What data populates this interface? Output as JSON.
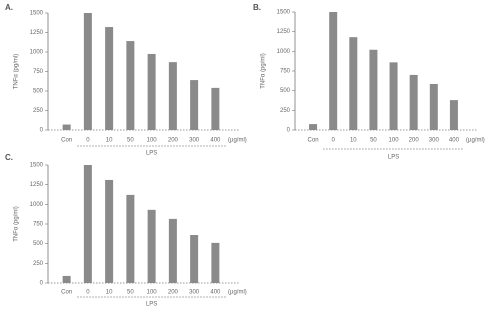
{
  "chart_data": [
    {
      "type": "bar",
      "title": "A.",
      "y_label": "TNFα (pg/ml)",
      "x_label": "LPS",
      "unit_label": "(µg/ml)",
      "categories": [
        "Con",
        "0",
        "10",
        "50",
        "100",
        "200",
        "300",
        "400"
      ],
      "values": [
        70,
        1500,
        1320,
        1140,
        975,
        870,
        640,
        540
      ],
      "color": "#8a8a8a",
      "ylim": [
        0,
        1500
      ],
      "yticks": [
        0,
        250,
        500,
        750,
        1000,
        1250,
        1500
      ]
    },
    {
      "type": "bar",
      "title": "B.",
      "y_label": "TNFα (pg/ml)",
      "x_label": "LPS",
      "unit_label": "(µg/ml)",
      "categories": [
        "Con",
        "0",
        "10",
        "50",
        "100",
        "200",
        "300",
        "400"
      ],
      "values": [
        75,
        1500,
        1180,
        1020,
        860,
        700,
        585,
        380
      ],
      "color": "#8a8a8a",
      "ylim": [
        0,
        1500
      ],
      "yticks": [
        0,
        250,
        500,
        750,
        1000,
        1250,
        1500
      ]
    },
    {
      "type": "bar",
      "title": "C.",
      "y_label": "TNFα (pg/ml)",
      "x_label": "LPS",
      "unit_label": "(µg/ml)",
      "categories": [
        "Con",
        "0",
        "10",
        "50",
        "100",
        "200",
        "300",
        "400"
      ],
      "values": [
        90,
        1500,
        1310,
        1120,
        930,
        815,
        610,
        510
      ],
      "color": "#8a8a8a",
      "ylim": [
        0,
        1500
      ],
      "yticks": [
        0,
        250,
        500,
        750,
        1000,
        1250,
        1500
      ]
    }
  ]
}
